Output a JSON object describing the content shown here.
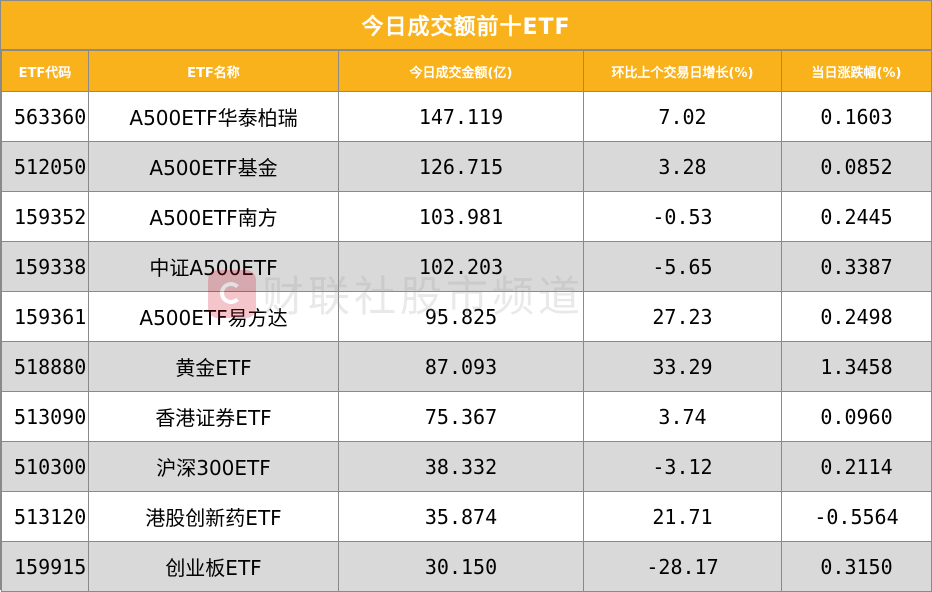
{
  "title": "今日成交额前十ETF",
  "headers": [
    "ETF代码",
    "ETF名称",
    "今日成交金额(亿)",
    "环比上个交易日增长(%)",
    "当日涨跌幅(%)"
  ],
  "rows": [
    {
      "code": "563360",
      "name": "A500ETF华泰柏瑞",
      "amount": "147.119",
      "growth": "7.02",
      "change": "0.1603"
    },
    {
      "code": "512050",
      "name": "A500ETF基金",
      "amount": "126.715",
      "growth": "3.28",
      "change": "0.0852"
    },
    {
      "code": "159352",
      "name": "A500ETF南方",
      "amount": "103.981",
      "growth": "-0.53",
      "change": "0.2445"
    },
    {
      "code": "159338",
      "name": "中证A500ETF",
      "amount": "102.203",
      "growth": "-5.65",
      "change": "0.3387"
    },
    {
      "code": "159361",
      "name": "A500ETF易方达",
      "amount": "95.825",
      "growth": "27.23",
      "change": "0.2498"
    },
    {
      "code": "518880",
      "name": "黄金ETF",
      "amount": "87.093",
      "growth": "33.29",
      "change": "1.3458"
    },
    {
      "code": "513090",
      "name": "香港证券ETF",
      "amount": "75.367",
      "growth": "3.74",
      "change": "0.0960"
    },
    {
      "code": "510300",
      "name": "沪深300ETF",
      "amount": "38.332",
      "growth": "-3.12",
      "change": "0.2114"
    },
    {
      "code": "513120",
      "name": "港股创新药ETF",
      "amount": "35.874",
      "growth": "21.71",
      "change": "-0.5564"
    },
    {
      "code": "159915",
      "name": "创业板ETF",
      "amount": "30.150",
      "growth": "-28.17",
      "change": "0.3150"
    }
  ],
  "watermark": {
    "text": "财联社股市频道",
    "logo_icon": "cls-logo-icon"
  },
  "colors": {
    "header_bg": "#f9b21b",
    "header_text": "#ffffff",
    "alt_row_bg": "#d9d9d9",
    "border": "#8a8a8a"
  }
}
